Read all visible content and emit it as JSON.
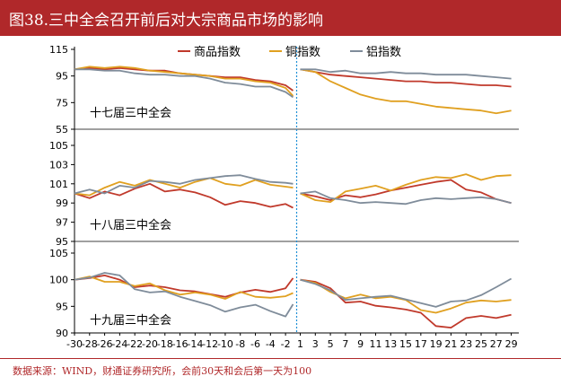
{
  "title": "图38.三中全会召开前后对大宗商品市场的影响",
  "source": "数据来源：WIND，财通证券研究所，会前30天和会后第一天为100",
  "colors": {
    "title_bg": "#b0282a",
    "commodity": "#c0392b",
    "copper": "#e0a020",
    "aluminum": "#7f8c9a",
    "axis": "#000000",
    "marker": "#1f8fd6"
  },
  "chart_data": {
    "type": "line",
    "legend": [
      "商品指数",
      "铜指数",
      "铝指数"
    ],
    "legend_position": "top",
    "grid": false,
    "x_ticks_pre": [
      -30,
      -28,
      -26,
      -24,
      -22,
      -20,
      -18,
      -16,
      -14,
      -12,
      -10,
      -8,
      -6,
      -4,
      -2
    ],
    "x_ticks_post": [
      1,
      3,
      5,
      7,
      9,
      11,
      13,
      15,
      17,
      19,
      21,
      23,
      25,
      27,
      29
    ],
    "x_tick_labels": [
      "-30",
      "-28",
      "-26",
      "-24",
      "-22",
      "-20",
      "-18",
      "-16",
      "-14",
      "-12",
      "-10",
      "-8",
      "-6",
      "-4",
      "-2",
      "1",
      "3",
      "5",
      "7",
      "9",
      "11",
      "13",
      "15",
      "17",
      "19",
      "21",
      "23",
      "25",
      "27",
      "29"
    ],
    "panels": [
      {
        "label": "十七届三中全会",
        "ylim": [
          55,
          115
        ],
        "yticks": [
          55,
          75,
          95,
          115
        ],
        "ytick_labels": [
          "55",
          "75",
          "95",
          "115"
        ],
        "pre": {
          "x": [
            -30,
            -28,
            -26,
            -24,
            -22,
            -20,
            -18,
            -16,
            -14,
            -12,
            -10,
            -8,
            -6,
            -4,
            -2,
            -1
          ],
          "商品指数": [
            100,
            101,
            100,
            101,
            100,
            99,
            99,
            97,
            96,
            95,
            94,
            94,
            92,
            91,
            88,
            84
          ],
          "铜指数": [
            100,
            102,
            101,
            102,
            101,
            99,
            98,
            97,
            96,
            95,
            93,
            93,
            91,
            90,
            86,
            80
          ],
          "铝指数": [
            100,
            100,
            99,
            99,
            97,
            96,
            96,
            95,
            95,
            93,
            90,
            89,
            87,
            87,
            83,
            79
          ]
        },
        "post": {
          "x": [
            1,
            3,
            5,
            7,
            9,
            11,
            13,
            15,
            17,
            19,
            21,
            23,
            25,
            27,
            29
          ],
          "商品指数": [
            100,
            98,
            96,
            95,
            94,
            93,
            92,
            91,
            91,
            90,
            90,
            89,
            88,
            88,
            87
          ],
          "铜指数": [
            100,
            98,
            91,
            86,
            81,
            78,
            76,
            76,
            74,
            72,
            71,
            70,
            69,
            67,
            69
          ],
          "铝指数": [
            100,
            100,
            98,
            99,
            97,
            97,
            98,
            97,
            97,
            96,
            96,
            96,
            95,
            94,
            93
          ]
        }
      },
      {
        "label": "十八届三中全会",
        "ylim": [
          95,
          105
        ],
        "yticks": [
          95,
          97,
          99,
          101,
          103,
          105
        ],
        "ytick_labels": [
          "95",
          "97",
          "99",
          "101",
          "103",
          "105"
        ],
        "pre": {
          "x": [
            -30,
            -28,
            -26,
            -24,
            -22,
            -20,
            -18,
            -16,
            -14,
            -12,
            -10,
            -8,
            -6,
            -4,
            -2,
            -1
          ],
          "商品指数": [
            100,
            99.5,
            100.2,
            99.8,
            100.5,
            101.0,
            100.2,
            100.4,
            100.1,
            99.6,
            98.8,
            99.2,
            99.0,
            98.6,
            98.9,
            98.5
          ],
          "铜指数": [
            100,
            99.8,
            100.6,
            101.2,
            100.8,
            101.4,
            101.0,
            100.6,
            101.2,
            101.6,
            101.0,
            100.8,
            101.4,
            100.9,
            100.7,
            100.6
          ],
          "铝指数": [
            100,
            100.4,
            100.0,
            100.8,
            100.6,
            101.3,
            101.2,
            101.0,
            101.4,
            101.6,
            101.8,
            101.9,
            101.5,
            101.2,
            101.1,
            101.0
          ]
        },
        "post": {
          "x": [
            1,
            3,
            5,
            7,
            9,
            11,
            13,
            15,
            17,
            19,
            21,
            23,
            25,
            27,
            29
          ],
          "商品指数": [
            100,
            99.7,
            99.3,
            99.8,
            99.6,
            99.9,
            100.3,
            100.6,
            100.9,
            101.2,
            101.4,
            100.4,
            100.1,
            99.4,
            99.0
          ],
          "铜指数": [
            100,
            99.3,
            99.1,
            100.2,
            100.5,
            100.8,
            100.3,
            100.9,
            101.4,
            101.7,
            101.6,
            102.0,
            101.4,
            101.8,
            101.9
          ],
          "铝指数": [
            100,
            100.2,
            99.5,
            99.3,
            99.0,
            99.1,
            99.0,
            98.9,
            99.3,
            99.5,
            99.4,
            99.5,
            99.6,
            99.4,
            99.0
          ]
        }
      },
      {
        "label": "十九届三中全会",
        "ylim": [
          90,
          105
        ],
        "yticks": [
          90,
          95,
          100,
          105
        ],
        "ytick_labels": [
          "90",
          "95",
          "100",
          "105"
        ],
        "pre": {
          "x": [
            -30,
            -28,
            -26,
            -24,
            -22,
            -20,
            -18,
            -16,
            -14,
            -12,
            -10,
            -8,
            -6,
            -4,
            -2,
            -1
          ],
          "商品指数": [
            100,
            100.3,
            100.8,
            100.0,
            98.6,
            98.9,
            98.6,
            98.0,
            97.8,
            97.3,
            96.8,
            97.6,
            98.1,
            97.7,
            98.4,
            100.3
          ],
          "铜指数": [
            100,
            100.6,
            99.6,
            99.6,
            98.8,
            99.3,
            98.0,
            97.2,
            97.6,
            97.2,
            96.4,
            97.7,
            96.8,
            96.6,
            96.9,
            97.5
          ],
          "铝指数": [
            100,
            100.4,
            101.3,
            100.8,
            98.2,
            97.6,
            97.8,
            96.8,
            96.0,
            95.2,
            94.0,
            94.8,
            95.3,
            94.1,
            93.1,
            95.4
          ]
        },
        "post": {
          "x": [
            1,
            3,
            5,
            7,
            9,
            11,
            13,
            15,
            17,
            19,
            21,
            23,
            25,
            27,
            29
          ],
          "商品指数": [
            100,
            99.6,
            98.4,
            95.7,
            95.9,
            95.1,
            94.8,
            94.4,
            93.8,
            91.3,
            91.0,
            92.8,
            93.2,
            92.8,
            93.4
          ],
          "铜指数": [
            100,
            99.4,
            97.7,
            96.5,
            97.2,
            96.5,
            96.8,
            96.2,
            94.3,
            93.8,
            94.6,
            95.7,
            96.1,
            95.9,
            96.2
          ],
          "铝指数": [
            100,
            99.2,
            98.0,
            96.2,
            96.5,
            96.8,
            97.0,
            96.3,
            95.6,
            94.9,
            95.9,
            96.1,
            97.1,
            98.6,
            100.2
          ]
        }
      }
    ]
  }
}
